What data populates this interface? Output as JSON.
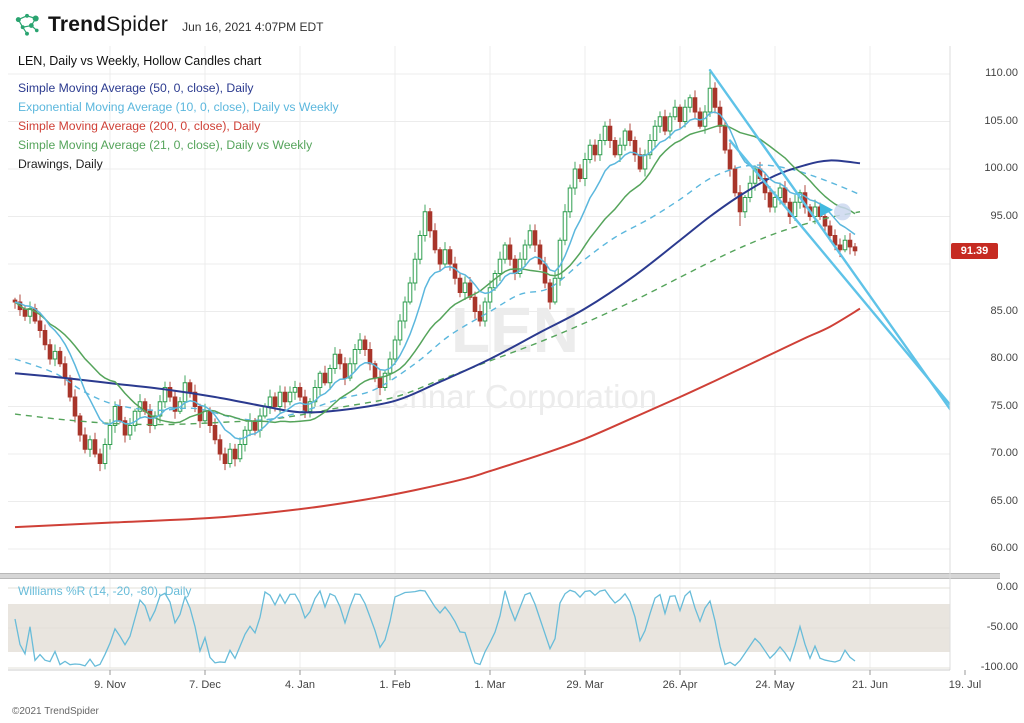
{
  "header": {
    "brand_bold": "Trend",
    "brand_light": "Spider",
    "timestamp": "Jun 16, 2021 4:07PM EDT"
  },
  "legend": {
    "title": "LEN, Daily vs Weekly, Hollow Candles chart",
    "items": [
      {
        "label": "Simple Moving Average (50, 0, close), Daily",
        "color": "#2b3a8f"
      },
      {
        "label": "Exponential Moving Average (10, 0, close), Daily vs Weekly",
        "color": "#5bb7dd"
      },
      {
        "label": "Simple Moving Average (200, 0, close), Daily",
        "color": "#cf4037"
      },
      {
        "label": "Simple Moving Average (21, 0, close), Daily vs Weekly",
        "color": "#55a45b"
      },
      {
        "label": "Drawings, Daily",
        "color": "#222222"
      }
    ]
  },
  "watermark": {
    "line1": "LEN",
    "line2": "Lennar Corporation"
  },
  "price_badge": {
    "value": "91.39",
    "bg": "#c62b22"
  },
  "footer": {
    "copyright": "©2021 TrendSpider"
  },
  "colors": {
    "candle_up": "#2f9e4f",
    "candle_down": "#a8352a",
    "sma50": "#2b3a8f",
    "ema10": "#5bb7dd",
    "sma200": "#cf4037",
    "sma21": "#55a45b",
    "trendline": "#5fc3e8",
    "williams": "#68bcd9",
    "grid": "#ececec",
    "band": "#e9e5df",
    "watermark": "#ececec",
    "logo_green": "#2aa470"
  },
  "chart_data": {
    "type": "candlestick",
    "symbol": "LEN",
    "company": "Lennar Corporation",
    "candle_style": "hollow",
    "timeframe": "Daily vs Weekly",
    "last_price": 91.39,
    "x_axis": {
      "labels": [
        "9. Nov",
        "7. Dec",
        "4. Jan",
        "1. Feb",
        "1. Mar",
        "29. Mar",
        "26. Apr",
        "24. May",
        "21. Jun",
        "19. Jul"
      ],
      "tick_indices": [
        19,
        38,
        57,
        76,
        95,
        114,
        133,
        152,
        171,
        190
      ]
    },
    "y_axis": {
      "labels": [
        "110.00",
        "105.00",
        "100.00",
        "95.00",
        "85.00",
        "80.00",
        "75.00",
        "70.00",
        "65.00",
        "60.00"
      ],
      "min": 60,
      "max": 110,
      "step": 5
    },
    "candles": {
      "first_open": 86.2,
      "closes": [
        86.0,
        85.2,
        84.5,
        85.3,
        84.0,
        83.0,
        81.5,
        80.0,
        80.8,
        79.5,
        78.0,
        76.0,
        74.0,
        72.0,
        70.5,
        71.5,
        70.0,
        69.0,
        71.0,
        73.0,
        75.0,
        73.5,
        72.0,
        73.0,
        74.5,
        75.5,
        74.5,
        73.0,
        74.0,
        75.5,
        77.0,
        76.0,
        74.5,
        75.5,
        77.5,
        76.5,
        75.0,
        73.5,
        74.5,
        73.0,
        71.5,
        70.0,
        69.0,
        70.5,
        69.5,
        71.0,
        72.5,
        73.5,
        72.5,
        74.0,
        75.0,
        76.0,
        75.0,
        76.5,
        75.5,
        76.5,
        77.0,
        76.0,
        74.5,
        75.5,
        77.0,
        78.5,
        77.5,
        79.0,
        80.5,
        79.5,
        78.0,
        79.5,
        81.0,
        82.0,
        81.0,
        79.5,
        78.0,
        77.0,
        78.5,
        80.0,
        82.0,
        84.0,
        86.0,
        88.0,
        90.5,
        93.0,
        95.5,
        93.5,
        91.5,
        90.0,
        91.5,
        90.0,
        88.5,
        87.0,
        88.0,
        86.5,
        85.0,
        84.0,
        86.0,
        87.5,
        89.0,
        90.5,
        92.0,
        90.5,
        89.0,
        90.5,
        92.0,
        93.5,
        92.0,
        90.0,
        88.0,
        86.0,
        88.5,
        92.5,
        95.5,
        98.0,
        100.0,
        99.0,
        101.0,
        102.5,
        101.5,
        103.0,
        104.5,
        103.0,
        101.5,
        102.5,
        104.0,
        103.0,
        101.5,
        100.0,
        101.5,
        103.0,
        104.5,
        105.5,
        104.0,
        105.5,
        106.5,
        105.0,
        106.5,
        107.5,
        106.0,
        104.5,
        106.0,
        108.5,
        106.5,
        104.5,
        102.0,
        100.0,
        97.5,
        95.5,
        97.0,
        98.5,
        100.0,
        99.0,
        97.5,
        96.0,
        97.0,
        98.0,
        96.5,
        95.0,
        96.5,
        97.5,
        96.0,
        95.0,
        96.0,
        95.0,
        94.0,
        93.0,
        92.0,
        91.5,
        92.5,
        91.8,
        91.39
      ],
      "overrides": [
        {
          "i": 17,
          "l": 68.2
        },
        {
          "i": 42,
          "l": 68.3
        },
        {
          "i": 139,
          "h": 110.3
        },
        {
          "i": 145,
          "l": 94.0
        }
      ]
    },
    "overlays": [
      {
        "name": "Simple Moving Average 200 Daily",
        "key": "sma200",
        "style": "solid",
        "width": 2,
        "points": [
          [
            0,
            62.3
          ],
          [
            20,
            62.8
          ],
          [
            40,
            63.3
          ],
          [
            57,
            64.2
          ],
          [
            70,
            65.2
          ],
          [
            80,
            66.2
          ],
          [
            90,
            67.4
          ],
          [
            95,
            68.2
          ],
          [
            105,
            69.9
          ],
          [
            114,
            71.6
          ],
          [
            124,
            73.9
          ],
          [
            133,
            76.0
          ],
          [
            140,
            77.7
          ],
          [
            146,
            79.2
          ],
          [
            152,
            80.7
          ],
          [
            158,
            82.2
          ],
          [
            163,
            83.4
          ],
          [
            169,
            85.3
          ]
        ]
      },
      {
        "name": "Simple Moving Average 21 Weekly",
        "key": "sma21",
        "style": "dashed",
        "width": 1.4,
        "points": [
          [
            0,
            74.2
          ],
          [
            10,
            73.6
          ],
          [
            20,
            73.2
          ],
          [
            30,
            73.1
          ],
          [
            40,
            73.3
          ],
          [
            50,
            73.6
          ],
          [
            57,
            74.1
          ],
          [
            65,
            74.9
          ],
          [
            76,
            76.0
          ],
          [
            85,
            77.8
          ],
          [
            95,
            79.8
          ],
          [
            105,
            81.8
          ],
          [
            114,
            83.8
          ],
          [
            124,
            86.2
          ],
          [
            133,
            88.6
          ],
          [
            139,
            90.2
          ],
          [
            145,
            91.7
          ],
          [
            152,
            93.2
          ],
          [
            158,
            94.2
          ],
          [
            163,
            94.9
          ],
          [
            169,
            95.5
          ]
        ]
      },
      {
        "name": "Exponential Moving Average 10 Weekly",
        "key": "ema10",
        "style": "dashed",
        "width": 1.4,
        "points": [
          [
            0,
            80.0
          ],
          [
            8,
            78.5
          ],
          [
            14,
            76.5
          ],
          [
            20,
            75.2
          ],
          [
            28,
            74.6
          ],
          [
            36,
            74.8
          ],
          [
            44,
            73.8
          ],
          [
            50,
            73.6
          ],
          [
            57,
            74.4
          ],
          [
            65,
            75.8
          ],
          [
            72,
            76.8
          ],
          [
            80,
            79.5
          ],
          [
            87,
            82.5
          ],
          [
            95,
            85.0
          ],
          [
            101,
            86.8
          ],
          [
            107,
            87.5
          ],
          [
            114,
            90.5
          ],
          [
            120,
            92.8
          ],
          [
            127,
            94.8
          ],
          [
            133,
            96.8
          ],
          [
            139,
            99.0
          ],
          [
            145,
            100.2
          ],
          [
            150,
            100.4
          ],
          [
            155,
            100.0
          ],
          [
            160,
            99.2
          ],
          [
            165,
            98.2
          ],
          [
            169,
            97.3
          ]
        ]
      },
      {
        "name": "Simple Moving Average 50 Daily",
        "key": "sma50",
        "style": "solid",
        "width": 2,
        "points": [
          [
            0,
            78.5
          ],
          [
            10,
            78.0
          ],
          [
            20,
            77.4
          ],
          [
            30,
            76.8
          ],
          [
            40,
            76.0
          ],
          [
            50,
            75.0
          ],
          [
            57,
            74.4
          ],
          [
            65,
            74.6
          ],
          [
            76,
            75.6
          ],
          [
            85,
            77.6
          ],
          [
            95,
            80.0
          ],
          [
            105,
            82.8
          ],
          [
            114,
            85.3
          ],
          [
            124,
            88.8
          ],
          [
            133,
            92.5
          ],
          [
            139,
            95.0
          ],
          [
            145,
            97.2
          ],
          [
            152,
            99.3
          ],
          [
            158,
            100.4
          ],
          [
            163,
            100.9
          ],
          [
            169,
            100.6
          ]
        ]
      },
      {
        "name": "Simple Moving Average 21 Daily",
        "key": "sma21",
        "style": "solid",
        "width": 1.5,
        "computed": "sma",
        "period": 21
      },
      {
        "name": "Exponential Moving Average 10 Daily",
        "key": "ema10",
        "style": "solid",
        "width": 1.5,
        "computed": "ema",
        "period": 10
      }
    ],
    "drawings": {
      "trendlines": [
        {
          "from": [
            139,
            110.4
          ],
          "to": [
            190,
            72.5
          ]
        },
        {
          "from": [
            143,
            103.0
          ],
          "to": [
            190,
            73.3
          ]
        }
      ],
      "marker": {
        "index": 162,
        "price": 95.7,
        "halo_index": 165.5
      }
    },
    "indicator_panel": {
      "label": "Williams %R (14, -20, -80), Daily",
      "period": 14,
      "upper": -20,
      "lower": -80,
      "range": [
        0,
        -100
      ],
      "y_labels": [
        "0.00",
        "-50.00",
        "-100.00"
      ]
    }
  }
}
